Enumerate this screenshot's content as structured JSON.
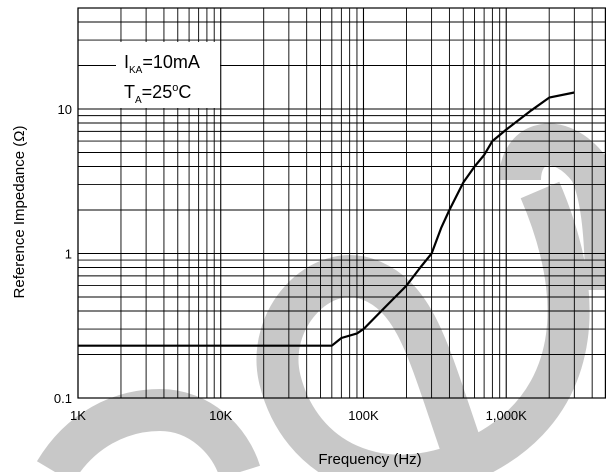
{
  "chart_data": {
    "type": "line",
    "title": "",
    "xlabel": "Frequency (Hz)",
    "ylabel": "Reference Impedance (Ω)",
    "x_scale": "log",
    "y_scale": "log",
    "xlim": [
      1000,
      5000000
    ],
    "ylim": [
      0.1,
      50
    ],
    "grid": true,
    "x_ticks": [
      {
        "value": 1000,
        "label": "1K"
      },
      {
        "value": 10000,
        "label": "10K"
      },
      {
        "value": 100000,
        "label": "100K"
      },
      {
        "value": 1000000,
        "label": "1,000K"
      }
    ],
    "y_ticks": [
      {
        "value": 0.1,
        "label": "0.1"
      },
      {
        "value": 1,
        "label": "1"
      },
      {
        "value": 10,
        "label": "10"
      }
    ],
    "annotation": {
      "line1": {
        "main": "I",
        "sub": "KA",
        "rest": "=10mA"
      },
      "line2": {
        "main": "T",
        "sub": "A",
        "rest": "=25",
        "sup": "o",
        "unit": "C"
      }
    },
    "series": [
      {
        "x": [
          1000,
          60000,
          70000,
          90000,
          100000,
          120000,
          150000,
          200000,
          250000,
          300000,
          350000,
          400000,
          500000,
          600000,
          700000,
          800000,
          1000000,
          1500000,
          2000000,
          3000000
        ],
        "y": [
          0.23,
          0.23,
          0.26,
          0.28,
          0.3,
          0.36,
          0.45,
          0.6,
          0.8,
          1.0,
          1.5,
          2.0,
          3.1,
          4.0,
          4.8,
          6.0,
          7.2,
          9.8,
          12.0,
          13.0
        ]
      }
    ],
    "colors": {
      "line": "#000000",
      "grid": "#000000",
      "watermark": "#c8c8c8"
    }
  }
}
